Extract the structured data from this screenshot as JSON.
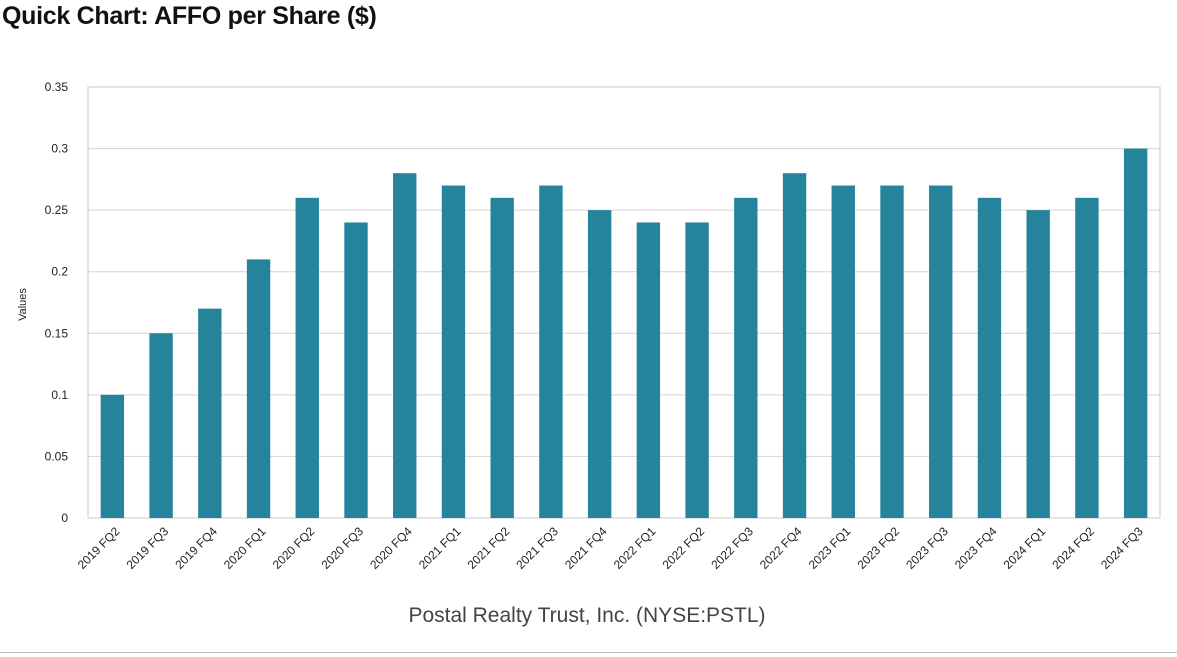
{
  "header": {
    "title": "Quick Chart: AFFO per Share ($)"
  },
  "chart_data": {
    "type": "bar",
    "title": "",
    "ylabel": "Values",
    "xlabel": "Postal Realty Trust, Inc. (NYSE:PSTL)",
    "ylim": [
      0,
      0.35
    ],
    "yticks": [
      "0",
      "0.05",
      "0.1",
      "0.15",
      "0.2",
      "0.25",
      "0.3",
      "0.35"
    ],
    "grid": true,
    "bar_color": "#25849b",
    "categories": [
      "2019 FQ2",
      "2019 FQ3",
      "2019 FQ4",
      "2020 FQ1",
      "2020 FQ2",
      "2020 FQ3",
      "2020 FQ4",
      "2021 FQ1",
      "2021 FQ2",
      "2021 FQ3",
      "2021 FQ4",
      "2022 FQ1",
      "2022 FQ2",
      "2022 FQ3",
      "2022 FQ4",
      "2023 FQ1",
      "2023 FQ2",
      "2023 FQ3",
      "2023 FQ4",
      "2024 FQ1",
      "2024 FQ2",
      "2024 FQ3"
    ],
    "values": [
      0.1,
      0.15,
      0.17,
      0.21,
      0.26,
      0.24,
      0.28,
      0.27,
      0.26,
      0.27,
      0.25,
      0.24,
      0.24,
      0.26,
      0.28,
      0.27,
      0.27,
      0.27,
      0.26,
      0.25,
      0.26,
      0.3
    ]
  }
}
